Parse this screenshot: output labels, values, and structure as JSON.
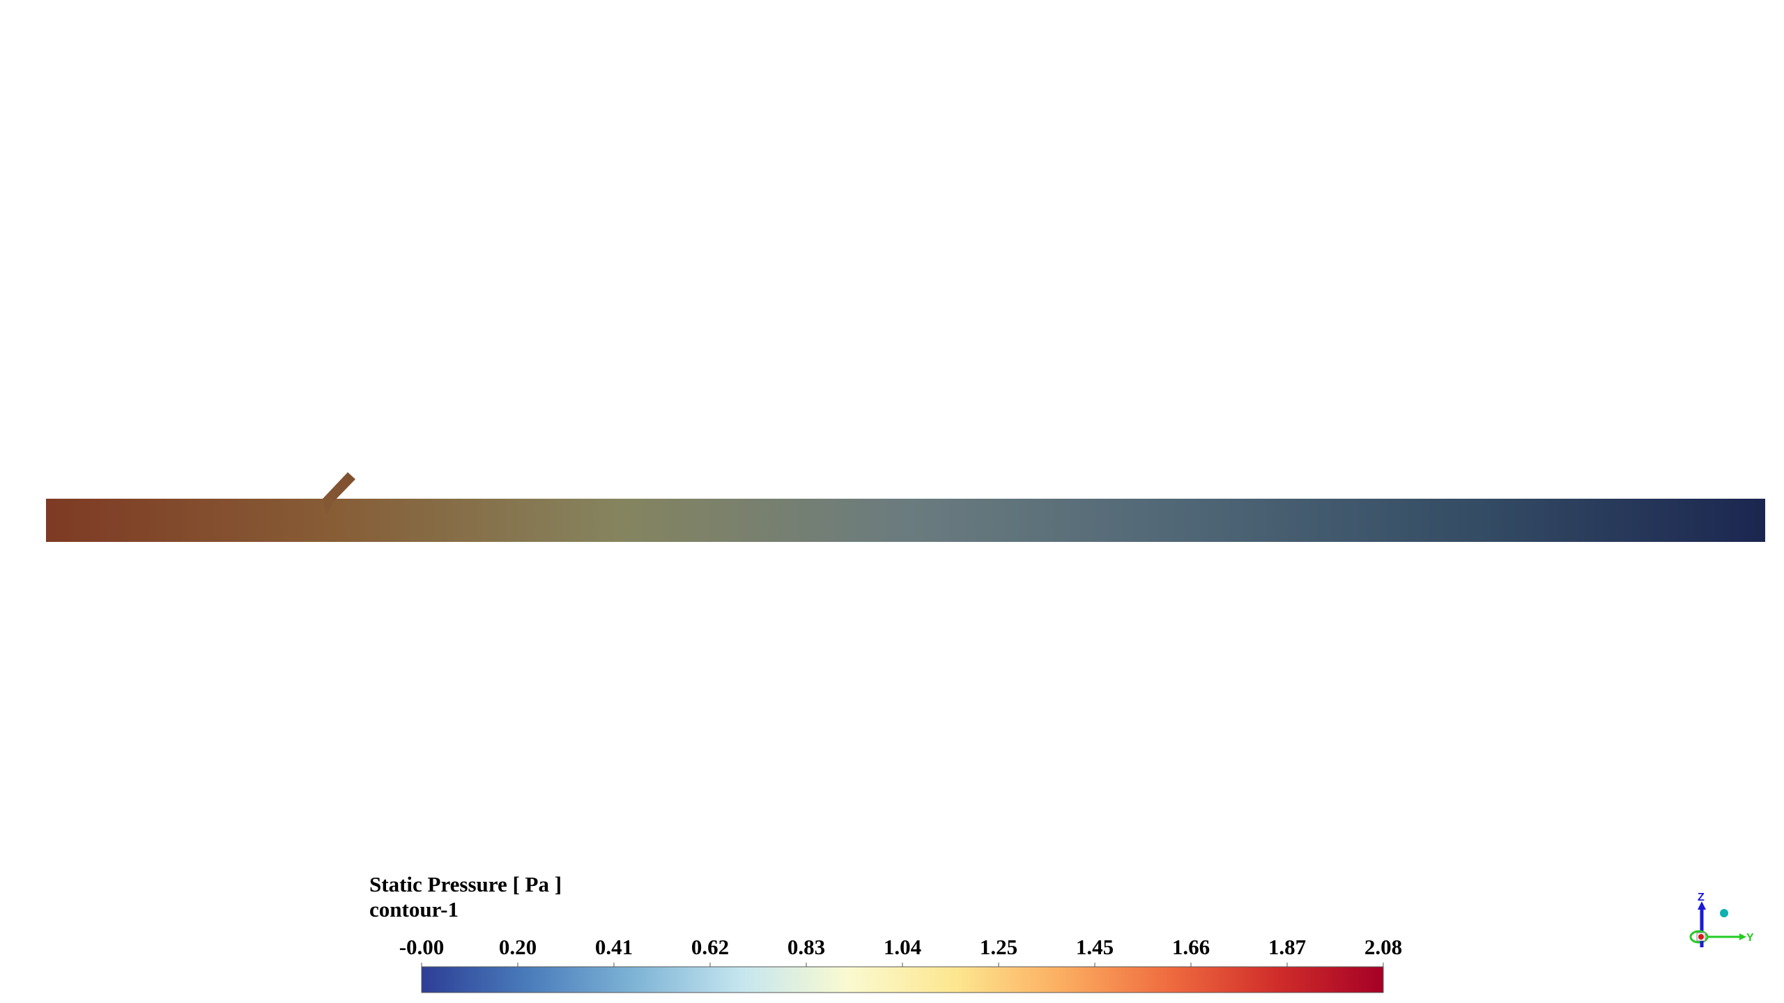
{
  "legend": {
    "title": "Static Pressure [ Pa ]",
    "subtitle": "contour-1",
    "tick_labels": [
      "-0.00",
      "0.20",
      "0.41",
      "0.62",
      "0.83",
      "1.04",
      "1.25",
      "1.45",
      "1.66",
      "1.87",
      "2.08"
    ],
    "colormap": [
      "#2d3e96",
      "#4a7cbb",
      "#7fb4d6",
      "#c5e6ef",
      "#fafad0",
      "#fde68f",
      "#fbad60",
      "#ef6b3f",
      "#d02d2a",
      "#a50026"
    ]
  },
  "contour_field": {
    "colors_along_pipe": [
      "#7e3a24",
      "#875d36",
      "#85845f",
      "#6b7c7f",
      "#4f6676",
      "#344c64",
      "#1b2650"
    ]
  },
  "axes_triad": {
    "z_label": "Z",
    "y_label": "Y",
    "colors": {
      "z": "#1a1ad6",
      "y": "#22cc22",
      "x": "#d61a1a",
      "dot": "#10b0b0"
    }
  }
}
